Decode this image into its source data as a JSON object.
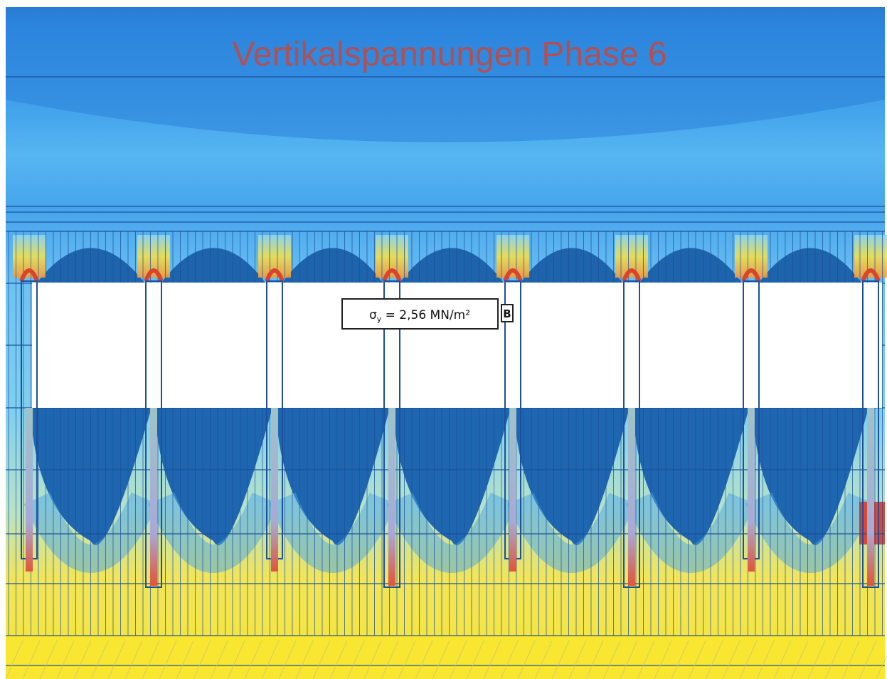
{
  "title": "Vertikalspannungen Phase 6",
  "annotation": {
    "symbol": "σ",
    "subscript": "y",
    "text": " = 2,56 MN/m²"
  },
  "marker": "B"
}
